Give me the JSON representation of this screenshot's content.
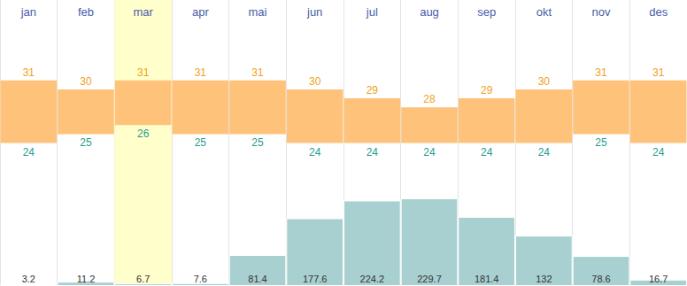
{
  "chart_data": [
    {
      "type": "range",
      "categories": [
        "jan",
        "feb",
        "mar",
        "apr",
        "mai",
        "jun",
        "jul",
        "aug",
        "sep",
        "okt",
        "nov",
        "des"
      ],
      "low": [
        24,
        25,
        26,
        25,
        25,
        24,
        24,
        24,
        24,
        24,
        25,
        24
      ],
      "high": [
        31,
        30,
        31,
        31,
        31,
        30,
        29,
        28,
        29,
        30,
        31,
        31
      ],
      "color": "#ffc27b",
      "data_labels": true,
      "ylim": [
        8,
        40
      ],
      "yticks": [
        8,
        16,
        24,
        32,
        40
      ],
      "grid": false,
      "tick_labels": "x"
    },
    {
      "type": "bar",
      "categories": [
        "jan",
        "feb",
        "mar",
        "apr",
        "mai",
        "jun",
        "jul",
        "aug",
        "sep",
        "okt",
        "nov",
        "des"
      ],
      "values": [
        3.2,
        11.2,
        6.7,
        7.6,
        81.4,
        177.6,
        224.2,
        229.7,
        181.4,
        132,
        78.6,
        16.7
      ],
      "color": "#a8d0d0",
      "data_labels": true,
      "ylim": [
        0,
        750
      ],
      "yticks": [
        0,
        250,
        500,
        750
      ],
      "grid": false,
      "tick_labels": false
    }
  ]
}
